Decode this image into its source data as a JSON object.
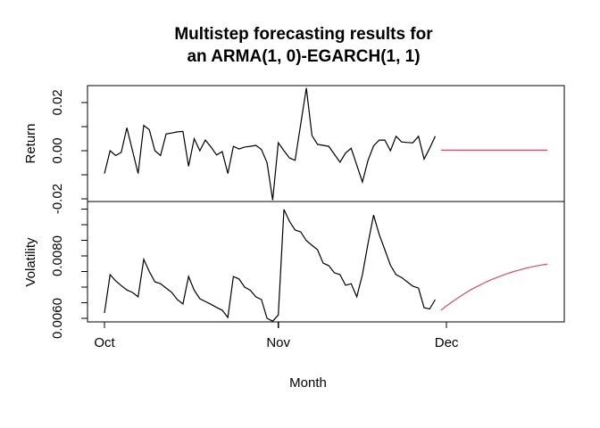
{
  "title": {
    "line1": "Multistep forecasting results for",
    "line2": "an ARMA(1, 0)-EGARCH(1, 1)"
  },
  "colors": {
    "observed": "#000000",
    "forecast": "#d24f63",
    "axis": "#000000",
    "text": "#000000",
    "background": "#ffffff"
  },
  "x_axis": {
    "label": "Month",
    "ticks": [
      {
        "label": "Oct",
        "day": 0
      },
      {
        "label": "Nov",
        "day": 31
      },
      {
        "label": "Dec",
        "day": 61
      }
    ],
    "domain_days": [
      0,
      82
    ]
  },
  "chart_data": [
    {
      "type": "line",
      "panel": "return",
      "ylabel": "Return",
      "ylim": [
        -0.0211,
        0.027
      ],
      "grid": false,
      "yticks": [
        {
          "value": 0.02,
          "label": "0.02"
        },
        {
          "value": 0.01,
          "label": ""
        },
        {
          "value": 0.0,
          "label": "0.00"
        },
        {
          "value": -0.01,
          "label": ""
        },
        {
          "value": -0.02,
          "label": "-0.02"
        }
      ],
      "series": [
        {
          "name": "observed",
          "color_key": "observed",
          "day_start": 0,
          "values": [
            -0.0095,
            0.0,
            -0.002,
            -0.0007,
            0.0095,
            0.0,
            -0.0095,
            0.0105,
            0.0087,
            0.0,
            -0.002,
            0.007,
            0.0073,
            0.0078,
            0.008,
            -0.0065,
            0.005,
            0.0,
            0.0044,
            0.0015,
            -0.0018,
            -0.0004,
            -0.0095,
            0.0018,
            0.0007,
            0.0015,
            0.0018,
            0.0022,
            0.0005,
            -0.005,
            -0.0205,
            0.0033,
            0.0,
            -0.003,
            -0.004,
            0.011,
            0.026,
            0.0063,
            0.0026,
            0.0022,
            0.0018,
            -0.0015,
            -0.0048,
            -0.001,
            0.001,
            -0.006,
            -0.013,
            -0.004,
            0.002,
            0.0044,
            0.0044,
            0.0,
            0.006,
            0.0036,
            0.0034,
            0.0033,
            0.006,
            -0.0035,
            0.001,
            0.006
          ]
        },
        {
          "name": "forecast",
          "color_key": "forecast",
          "day_start": 60,
          "values": [
            0.0002,
            0.0002,
            0.0002,
            0.0002,
            0.0002,
            0.0002,
            0.0002,
            0.0002,
            0.0002,
            0.0002,
            0.0002,
            0.0002,
            0.0002,
            0.0002,
            0.0002,
            0.0002,
            0.0002,
            0.0002,
            0.0002,
            0.0002
          ]
        }
      ]
    },
    {
      "type": "line",
      "panel": "volatility",
      "ylabel": "Volatility",
      "ylim": [
        0.005886,
        0.009743
      ],
      "grid": false,
      "yticks": [
        {
          "value": 0.0095,
          "label": ""
        },
        {
          "value": 0.009,
          "label": ""
        },
        {
          "value": 0.0085,
          "label": ""
        },
        {
          "value": 0.008,
          "label": "0.0080"
        },
        {
          "value": 0.0075,
          "label": ""
        },
        {
          "value": 0.007,
          "label": ""
        },
        {
          "value": 0.0065,
          "label": ""
        },
        {
          "value": 0.006,
          "label": "0.0060"
        }
      ],
      "series": [
        {
          "name": "observed",
          "color_key": "observed",
          "day_start": 0,
          "values": [
            0.00617,
            0.0074,
            0.0072,
            0.00705,
            0.00691,
            0.00683,
            0.00669,
            0.00789,
            0.0075,
            0.00717,
            0.00711,
            0.00697,
            0.00683,
            0.0066,
            0.00646,
            0.00734,
            0.0069,
            0.00663,
            0.00654,
            0.00645,
            0.00635,
            0.00626,
            0.00603,
            0.00734,
            0.00726,
            0.007,
            0.0069,
            0.00669,
            0.0066,
            0.006,
            0.00591,
            0.00611,
            0.00949,
            0.00911,
            0.00883,
            0.00877,
            0.00849,
            0.00834,
            0.0082,
            0.00777,
            0.00769,
            0.00746,
            0.0074,
            0.00706,
            0.00711,
            0.00669,
            0.0074,
            0.0084,
            0.00931,
            0.00869,
            0.0082,
            0.0077,
            0.0074,
            0.00731,
            0.00717,
            0.00703,
            0.00697,
            0.00634,
            0.0063,
            0.0066
          ]
        },
        {
          "name": "forecast",
          "color_key": "forecast",
          "day_start": 60,
          "values": [
            0.00626,
            0.0064,
            0.00653,
            0.00665,
            0.00677,
            0.00688,
            0.00698,
            0.00707,
            0.00716,
            0.00724,
            0.00731,
            0.00738,
            0.00744,
            0.0075,
            0.00755,
            0.0076,
            0.00764,
            0.00768,
            0.00771,
            0.00774
          ]
        }
      ]
    }
  ]
}
